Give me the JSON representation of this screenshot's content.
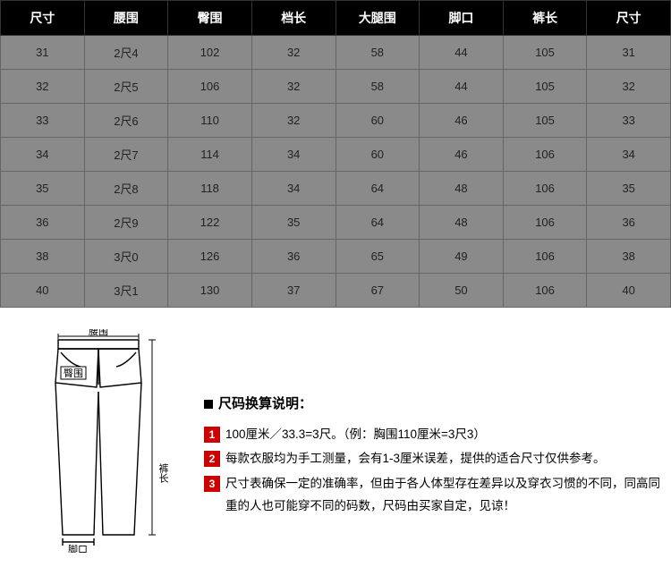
{
  "table": {
    "header_bg": "#000000",
    "header_fg": "#ffffff",
    "row_bg": "#8a8a8a",
    "row_fg": "#222222",
    "border_color": "#666666",
    "columns": [
      "尺寸",
      "腰围",
      "臀围",
      "档长",
      "大腿围",
      "脚口",
      "裤长",
      "尺寸"
    ],
    "rows": [
      [
        "31",
        "2尺4",
        "102",
        "32",
        "58",
        "44",
        "105",
        "31"
      ],
      [
        "32",
        "2尺5",
        "106",
        "32",
        "58",
        "44",
        "105",
        "32"
      ],
      [
        "33",
        "2尺6",
        "110",
        "32",
        "60",
        "46",
        "105",
        "33"
      ],
      [
        "34",
        "2尺7",
        "114",
        "34",
        "60",
        "46",
        "106",
        "34"
      ],
      [
        "35",
        "2尺8",
        "118",
        "34",
        "64",
        "48",
        "106",
        "35"
      ],
      [
        "36",
        "2尺9",
        "122",
        "35",
        "64",
        "48",
        "106",
        "36"
      ],
      [
        "38",
        "3尺0",
        "126",
        "36",
        "65",
        "49",
        "106",
        "38"
      ],
      [
        "40",
        "3尺1",
        "130",
        "37",
        "67",
        "50",
        "106",
        "40"
      ]
    ]
  },
  "diagram": {
    "label_waist": "腰围",
    "label_hip": "臀围",
    "label_length": "裤长",
    "label_hem": "脚口",
    "stroke": "#000000"
  },
  "notes": {
    "title": "尺码换算说明：",
    "item1": "100厘米／33.3=3尺。（例：胸围110厘米=3尺3）",
    "item2": "每款衣服均为手工测量，会有1-3厘米误差，提供的适合尺寸仅供参考。",
    "item3": "尺寸表确保一定的准确率，但由于各人体型存在差异以及穿衣习惯的不同，同高同重的人也可能穿不同的码数，尺码由买家自定，见谅！",
    "numbox_bg": "#cc0000"
  }
}
